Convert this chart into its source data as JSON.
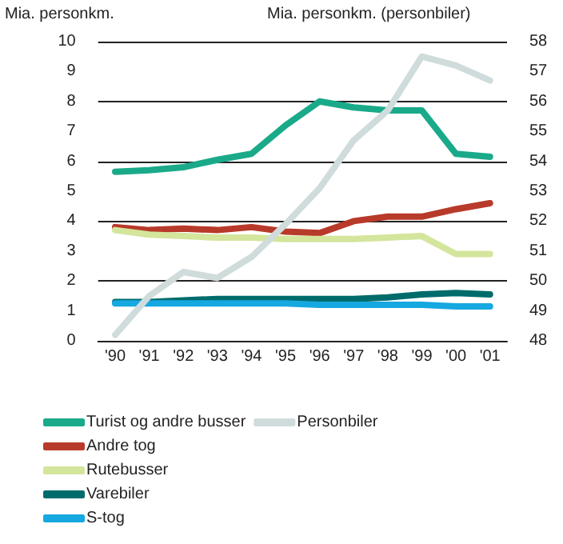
{
  "chart_data": {
    "type": "line",
    "ylabel": "Mia. personkm.",
    "y2label": "Mia. personkm. (personbiler)",
    "categories": [
      "'90",
      "'91",
      "'92",
      "'93",
      "'94",
      "'95",
      "'96",
      "'97",
      "'98",
      "'99",
      "'00",
      "'01"
    ],
    "ylim": [
      0,
      10
    ],
    "yticks": [
      0,
      1,
      2,
      3,
      4,
      5,
      6,
      7,
      8,
      9,
      10
    ],
    "y2lim": [
      48,
      58
    ],
    "y2ticks": [
      48,
      49,
      50,
      51,
      52,
      53,
      54,
      55,
      56,
      57,
      58
    ],
    "grid": "y",
    "legend": "bottom",
    "marker": "none",
    "line_style": "solid",
    "series": [
      {
        "name": "Turist og andre busser",
        "color": "#1aaa8a",
        "values": [
          5.65,
          5.7,
          5.8,
          6.05,
          6.25,
          7.2,
          8.0,
          7.8,
          7.7,
          7.7,
          6.25,
          6.15
        ]
      },
      {
        "name": "Andre tog",
        "color": "#b83a2a",
        "values": [
          3.8,
          3.7,
          3.75,
          3.7,
          3.8,
          3.65,
          3.6,
          4.0,
          4.15,
          4.15,
          4.4,
          4.6
        ]
      },
      {
        "name": "Rutebusser",
        "color": "#d4e59c",
        "values": [
          3.7,
          3.55,
          3.5,
          3.45,
          3.45,
          3.4,
          3.4,
          3.4,
          3.45,
          3.5,
          2.9,
          2.9
        ]
      },
      {
        "name": "Varebiler",
        "color": "#006b6b",
        "values": [
          1.3,
          1.3,
          1.35,
          1.4,
          1.4,
          1.4,
          1.4,
          1.4,
          1.45,
          1.55,
          1.6,
          1.55
        ]
      },
      {
        "name": "S-tog",
        "color": "#16a8e0",
        "values": [
          1.25,
          1.25,
          1.25,
          1.25,
          1.25,
          1.25,
          1.2,
          1.2,
          1.2,
          1.2,
          1.15,
          1.15
        ]
      },
      {
        "name": "Personbiler",
        "color": "#d0dcdc",
        "axis": "y2",
        "values": [
          48.2,
          49.5,
          50.3,
          50.1,
          50.8,
          51.9,
          53.1,
          54.7,
          55.7,
          57.5,
          57.2,
          56.7
        ]
      }
    ]
  }
}
